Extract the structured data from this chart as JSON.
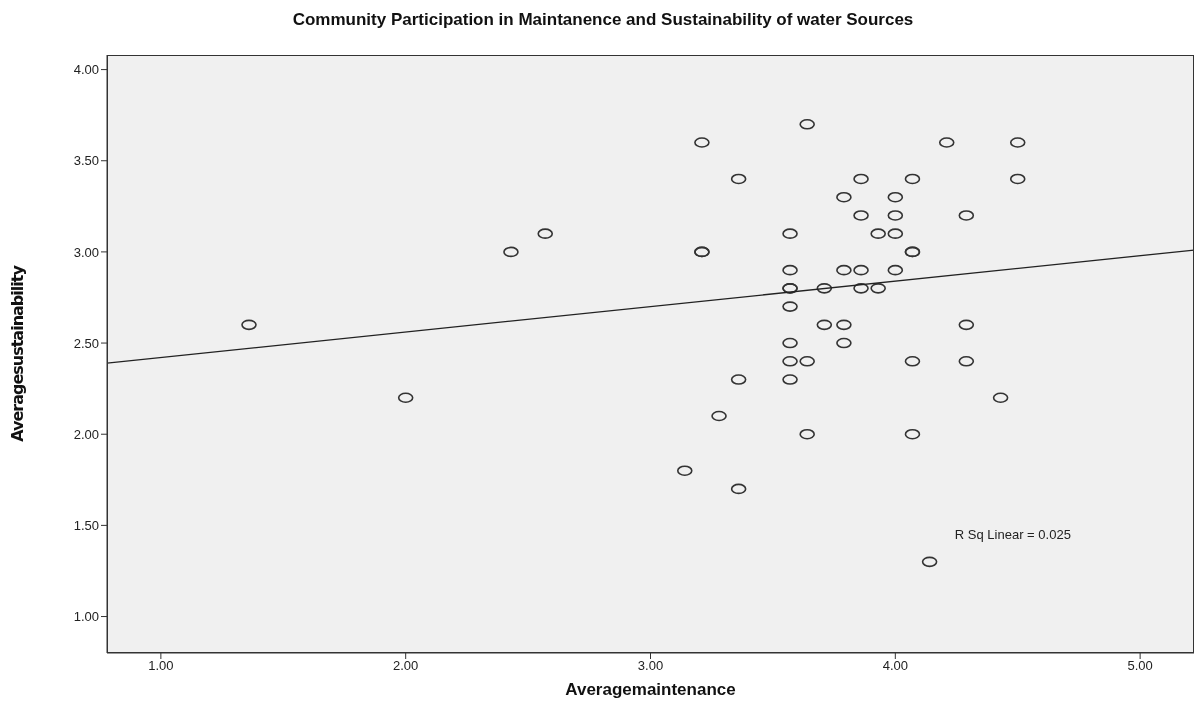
{
  "chart_data": {
    "type": "scatter",
    "title": "Community Participation in Maintanence and Sustainability of water Sources",
    "xlabel": "Averagemaintenance",
    "ylabel": "Averagesustainability",
    "annotations": [
      "R Sq Linear = 0.025"
    ],
    "grid": false,
    "legend": false,
    "xlim": [
      0.78,
      5.22
    ],
    "xticks": [
      {
        "value": 1,
        "label": "1.00"
      },
      {
        "value": 2,
        "label": "2.00"
      },
      {
        "value": 3,
        "label": "3.00"
      },
      {
        "value": 4,
        "label": "4.00"
      },
      {
        "value": 5,
        "label": "5.00"
      }
    ],
    "ylim": [
      0.8,
      4.08
    ],
    "yticks": [
      {
        "value": 1,
        "label": "1.00"
      },
      {
        "value": 1.5,
        "label": "1.50"
      },
      {
        "value": 2,
        "label": "2.00"
      },
      {
        "value": 2.5,
        "label": "2.50"
      },
      {
        "value": 3,
        "label": "3.00"
      },
      {
        "value": 3.5,
        "label": "3.50"
      },
      {
        "value": 4,
        "label": "4.00"
      }
    ],
    "series": [
      {
        "marker": "circle",
        "color": "#333333",
        "x": [
          1.36,
          2.0,
          2.43,
          2.57,
          3.64,
          3.21,
          4.21,
          4.5,
          3.36,
          3.86,
          4.07,
          4.5,
          3.79,
          4.0,
          3.86,
          4.0,
          4.29,
          3.57,
          3.93,
          4.0,
          3.21,
          3.21,
          4.07,
          4.07,
          3.57,
          3.79,
          3.86,
          4.0,
          3.57,
          3.57,
          3.71,
          3.86,
          3.93,
          3.57,
          3.71,
          3.79,
          4.29,
          3.57,
          3.79,
          3.57,
          3.64,
          4.07,
          4.29,
          3.36,
          3.57,
          4.43,
          3.28,
          3.64,
          4.07,
          3.14,
          3.36,
          4.14
        ],
        "values": [
          2.6,
          2.2,
          3.0,
          3.1,
          3.7,
          3.6,
          3.6,
          3.6,
          3.4,
          3.4,
          3.4,
          3.4,
          3.3,
          3.3,
          3.2,
          3.2,
          3.2,
          3.1,
          3.1,
          3.1,
          3.0,
          3.0,
          3.0,
          3.0,
          2.9,
          2.9,
          2.9,
          2.9,
          2.8,
          2.8,
          2.8,
          2.8,
          2.8,
          2.7,
          2.6,
          2.6,
          2.6,
          2.5,
          2.5,
          2.4,
          2.4,
          2.4,
          2.4,
          2.3,
          2.3,
          2.2,
          2.1,
          2.0,
          2.0,
          1.8,
          1.7,
          1.3
        ]
      },
      {
        "type": "line",
        "color": "#222222",
        "x": [
          0.78,
          5.22
        ],
        "values": [
          2.39,
          3.01
        ]
      }
    ]
  }
}
